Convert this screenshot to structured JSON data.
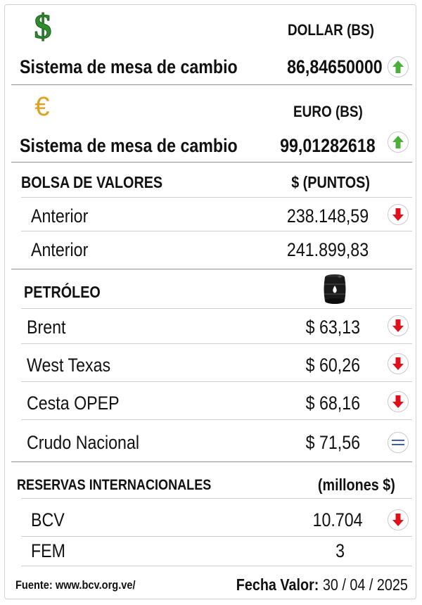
{
  "dollar": {
    "icon": "dollar-sign-icon",
    "header": "DOLLAR (BS)",
    "label": "Sistema de mesa de cambio",
    "value": "86,84650000",
    "trend": "up"
  },
  "euro": {
    "icon": "euro-sign-icon",
    "header": "EURO (BS)",
    "label": "Sistema de mesa de cambio",
    "value": "99,01282618",
    "trend": "up"
  },
  "bolsa": {
    "title": "BOLSA DE VALORES",
    "unit": "$ (PUNTOS)",
    "rows": [
      {
        "label": "Anterior",
        "value": "238.148,59",
        "trend": "down"
      },
      {
        "label": "Anterior",
        "value": "241.899,83"
      }
    ]
  },
  "petroleo": {
    "title": "PETRÓLEO",
    "icon": "oil-barrel-icon",
    "rows": [
      {
        "label": "Brent",
        "value": "$ 63,13",
        "trend": "down"
      },
      {
        "label": "West Texas",
        "value": "$ 60,26",
        "trend": "down"
      },
      {
        "label": "Cesta OPEP",
        "value": "$ 68,16",
        "trend": "down"
      },
      {
        "label": "Crudo Nacional",
        "value": "$ 71,56",
        "trend": "equal"
      }
    ]
  },
  "reservas": {
    "title": "RESERVAS INTERNACIONALES",
    "unit": "(millones $)",
    "rows": [
      {
        "label": "BCV",
        "value": "10.704",
        "trend": "down"
      },
      {
        "label": "FEM",
        "value": "3"
      }
    ]
  },
  "footer": {
    "source": "Fuente: www.bcv.org.ve/",
    "date_label": "Fecha Valor:",
    "date_value": "30 / 04 / 2025"
  },
  "colors": {
    "up": "#4caf3a",
    "down": "#e0101a",
    "equal": "#2a4fa0",
    "dollar": "#2e8b2e",
    "euro": "#e0a020"
  }
}
